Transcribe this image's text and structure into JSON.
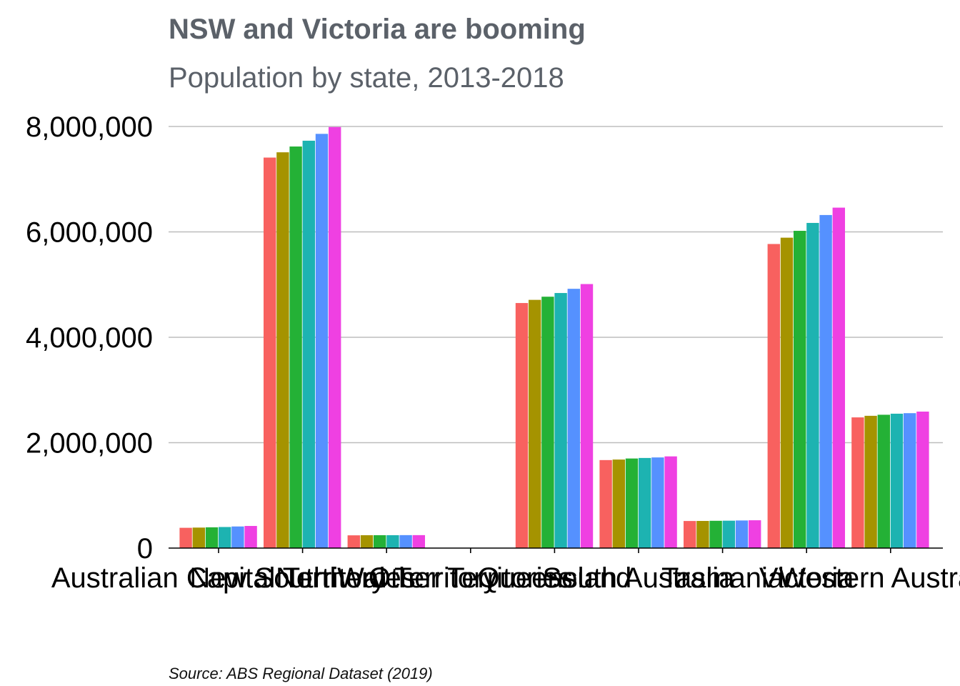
{
  "chart_data": {
    "type": "bar",
    "title": "NSW and Victoria are booming",
    "subtitle": "Population by state, 2013-2018",
    "caption": "Source: ABS Regional Dataset (2019)",
    "xlabel": "",
    "ylabel": "",
    "ylim": [
      0,
      8000000
    ],
    "yticks": [
      0,
      2000000,
      4000000,
      6000000,
      8000000
    ],
    "ytick_labels": [
      "0",
      "2,000,000",
      "4,000,000",
      "6,000,000",
      "8,000,000"
    ],
    "grid": "horizontal",
    "legend": "none",
    "categories": [
      "Australian Capital Territory",
      "New South Wales",
      "Northern Territory",
      "Other Territories",
      "Queensland",
      "South Australia",
      "Tasmania",
      "Victoria",
      "Western Australia"
    ],
    "series": [
      {
        "color": "#f8615f",
        "values": [
          385000,
          7410000,
          242000,
          0,
          4650000,
          1670000,
          514000,
          5770000,
          2480000
        ]
      },
      {
        "color": "#a59300",
        "values": [
          389000,
          7510000,
          244000,
          0,
          4710000,
          1680000,
          515000,
          5890000,
          2510000
        ]
      },
      {
        "color": "#24b136",
        "values": [
          394000,
          7620000,
          245000,
          0,
          4770000,
          1700000,
          518000,
          6020000,
          2530000
        ]
      },
      {
        "color": "#1db3b1",
        "values": [
          400000,
          7730000,
          245000,
          0,
          4840000,
          1710000,
          520000,
          6170000,
          2550000
        ]
      },
      {
        "color": "#5591ff",
        "values": [
          410000,
          7860000,
          246000,
          0,
          4920000,
          1720000,
          524000,
          6320000,
          2560000
        ]
      },
      {
        "color": "#ef40e2",
        "values": [
          420000,
          7990000,
          246000,
          0,
          5010000,
          1740000,
          528000,
          6460000,
          2590000
        ]
      }
    ]
  }
}
